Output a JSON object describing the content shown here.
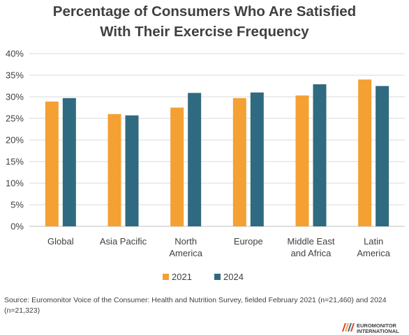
{
  "chart_data": {
    "type": "bar",
    "title": [
      "Percentage of Consumers Who Are Satisfied",
      "With Their Exercise Frequency"
    ],
    "categories": [
      [
        "Global"
      ],
      [
        "Asia Pacific"
      ],
      [
        "North",
        "America"
      ],
      [
        "Europe"
      ],
      [
        "Middle East",
        "and Africa"
      ],
      [
        "Latin",
        "America"
      ]
    ],
    "series": [
      {
        "name": "2021",
        "color": "#f4a032",
        "values": [
          28.9,
          26.0,
          27.5,
          29.7,
          30.3,
          34.0
        ]
      },
      {
        "name": "2024",
        "color": "#2f6a80",
        "values": [
          29.7,
          25.7,
          30.9,
          31.0,
          32.9,
          32.5
        ]
      }
    ],
    "ylim": [
      0,
      40
    ],
    "yticks": [
      0,
      5,
      10,
      15,
      20,
      25,
      30,
      35,
      40
    ],
    "ytick_labels": [
      "0%",
      "5%",
      "10%",
      "15%",
      "20%",
      "25%",
      "30%",
      "35%",
      "40%"
    ],
    "grid": true,
    "legend": "bottom",
    "xlabel": "",
    "ylabel": ""
  },
  "source_note": "Source: Euromonitor Voice of the Consumer: Health and Nutrition Survey, fielded February 2021 (n=21,460) and 2024 (n=21,323)",
  "logo": {
    "line1": "EUROMONITOR",
    "line2": "INTERNATIONAL"
  }
}
